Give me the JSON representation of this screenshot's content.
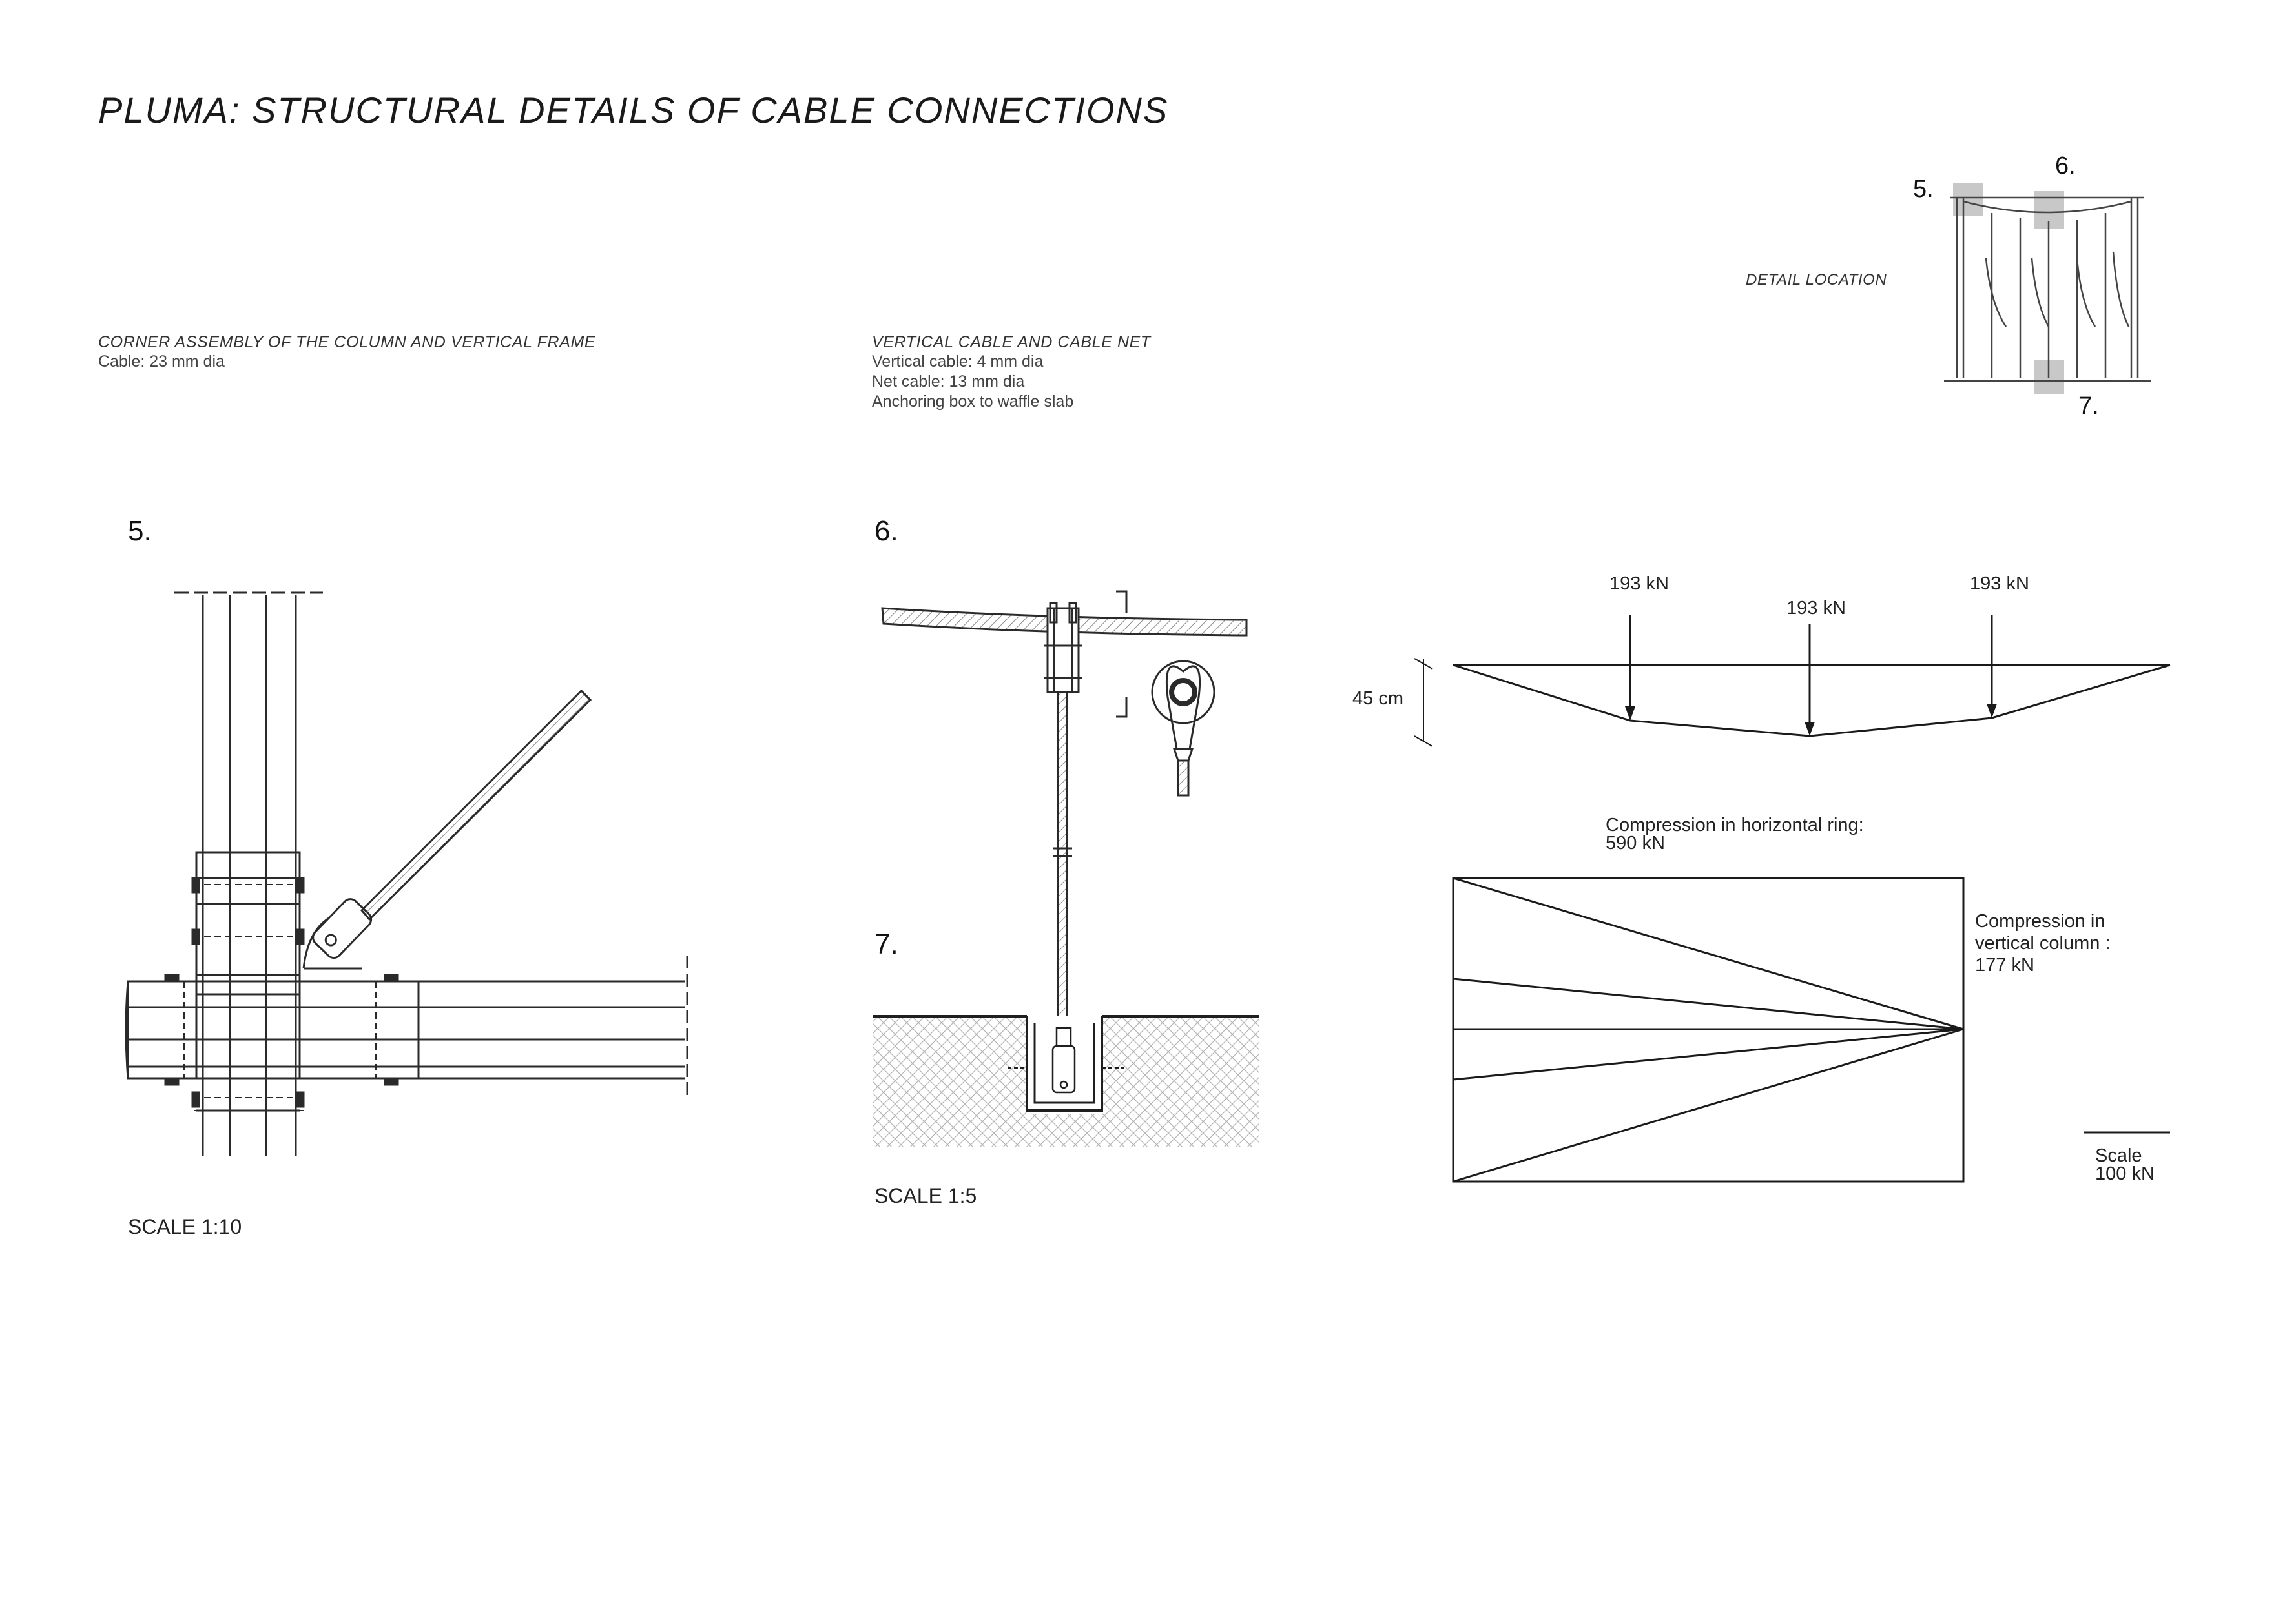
{
  "title": "PLUMA: STRUCTURAL DETAILS OF CABLE CONNECTIONS",
  "detail_location": {
    "label": "DETAIL LOCATION",
    "markers": [
      "5.",
      "6.",
      "7."
    ]
  },
  "caption5": {
    "heading": "CORNER ASSEMBLY OF THE COLUMN AND VERTICAL FRAME",
    "lines": [
      "Cable: 23 mm dia"
    ]
  },
  "caption6": {
    "heading": "VERTICAL CABLE AND CABLE NET",
    "lines": [
      "Vertical cable: 4 mm dia",
      "Net cable: 13 mm dia",
      "Anchoring box to waffle slab"
    ]
  },
  "detail5": {
    "number": "5.",
    "scale": "SCALE 1:10"
  },
  "detail6": {
    "number": "6.",
    "scale": "SCALE 1:5"
  },
  "detail7": {
    "number": "7."
  },
  "force_diagram": {
    "loads": [
      "193 kN",
      "193 kN",
      "193 kN"
    ],
    "sag": "45 cm",
    "ring_compression": [
      "Compression in horizontal ring:",
      "590 kN"
    ],
    "column_compression": [
      "Compression in",
      "vertical column :",
      "177 kN"
    ],
    "scale": [
      "Scale",
      "100 kN"
    ]
  },
  "colors": {
    "ink": "#1a1a1a",
    "marker": "#c8c8c8",
    "hatch": "#9a9a9a"
  }
}
